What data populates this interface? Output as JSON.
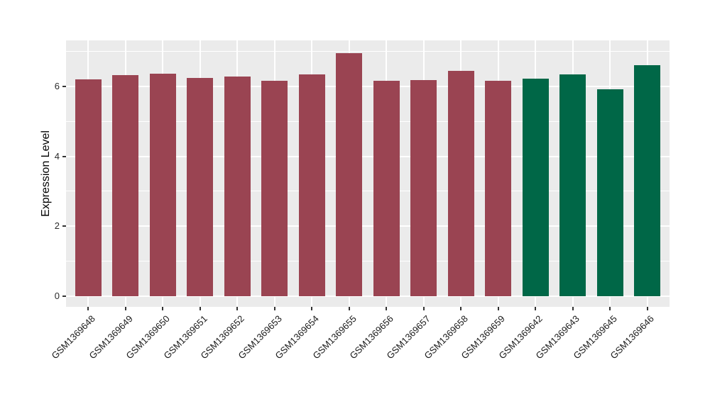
{
  "chart_data": {
    "type": "bar",
    "title": "",
    "xlabel": "",
    "ylabel": "Expression Level",
    "categories": [
      "GSM1369648",
      "GSM1369649",
      "GSM1369650",
      "GSM1369651",
      "GSM1369652",
      "GSM1369653",
      "GSM1369654",
      "GSM1369655",
      "GSM1369656",
      "GSM1369657",
      "GSM1369658",
      "GSM1369659",
      "GSM1369642",
      "GSM1369643",
      "GSM1369645",
      "GSM1369646"
    ],
    "values": [
      6.21,
      6.32,
      6.36,
      6.25,
      6.28,
      6.17,
      6.34,
      6.96,
      6.16,
      6.18,
      6.44,
      6.17,
      6.23,
      6.34,
      5.91,
      6.61
    ],
    "groups": [
      "groupA",
      "groupA",
      "groupA",
      "groupA",
      "groupA",
      "groupA",
      "groupA",
      "groupA",
      "groupA",
      "groupA",
      "groupA",
      "groupA",
      "groupB",
      "groupB",
      "groupB",
      "groupB"
    ],
    "group_colors": {
      "groupA": "#9A4452",
      "groupB": "#006747"
    },
    "yticks": [
      0,
      2,
      4,
      6
    ],
    "yticks_minor": [
      1,
      3,
      5,
      7
    ],
    "ylim": [
      0,
      7.3
    ],
    "grid": "on",
    "legend": "none",
    "panel_background": "#EBEBEB",
    "grid_color": "#FFFFFF"
  }
}
